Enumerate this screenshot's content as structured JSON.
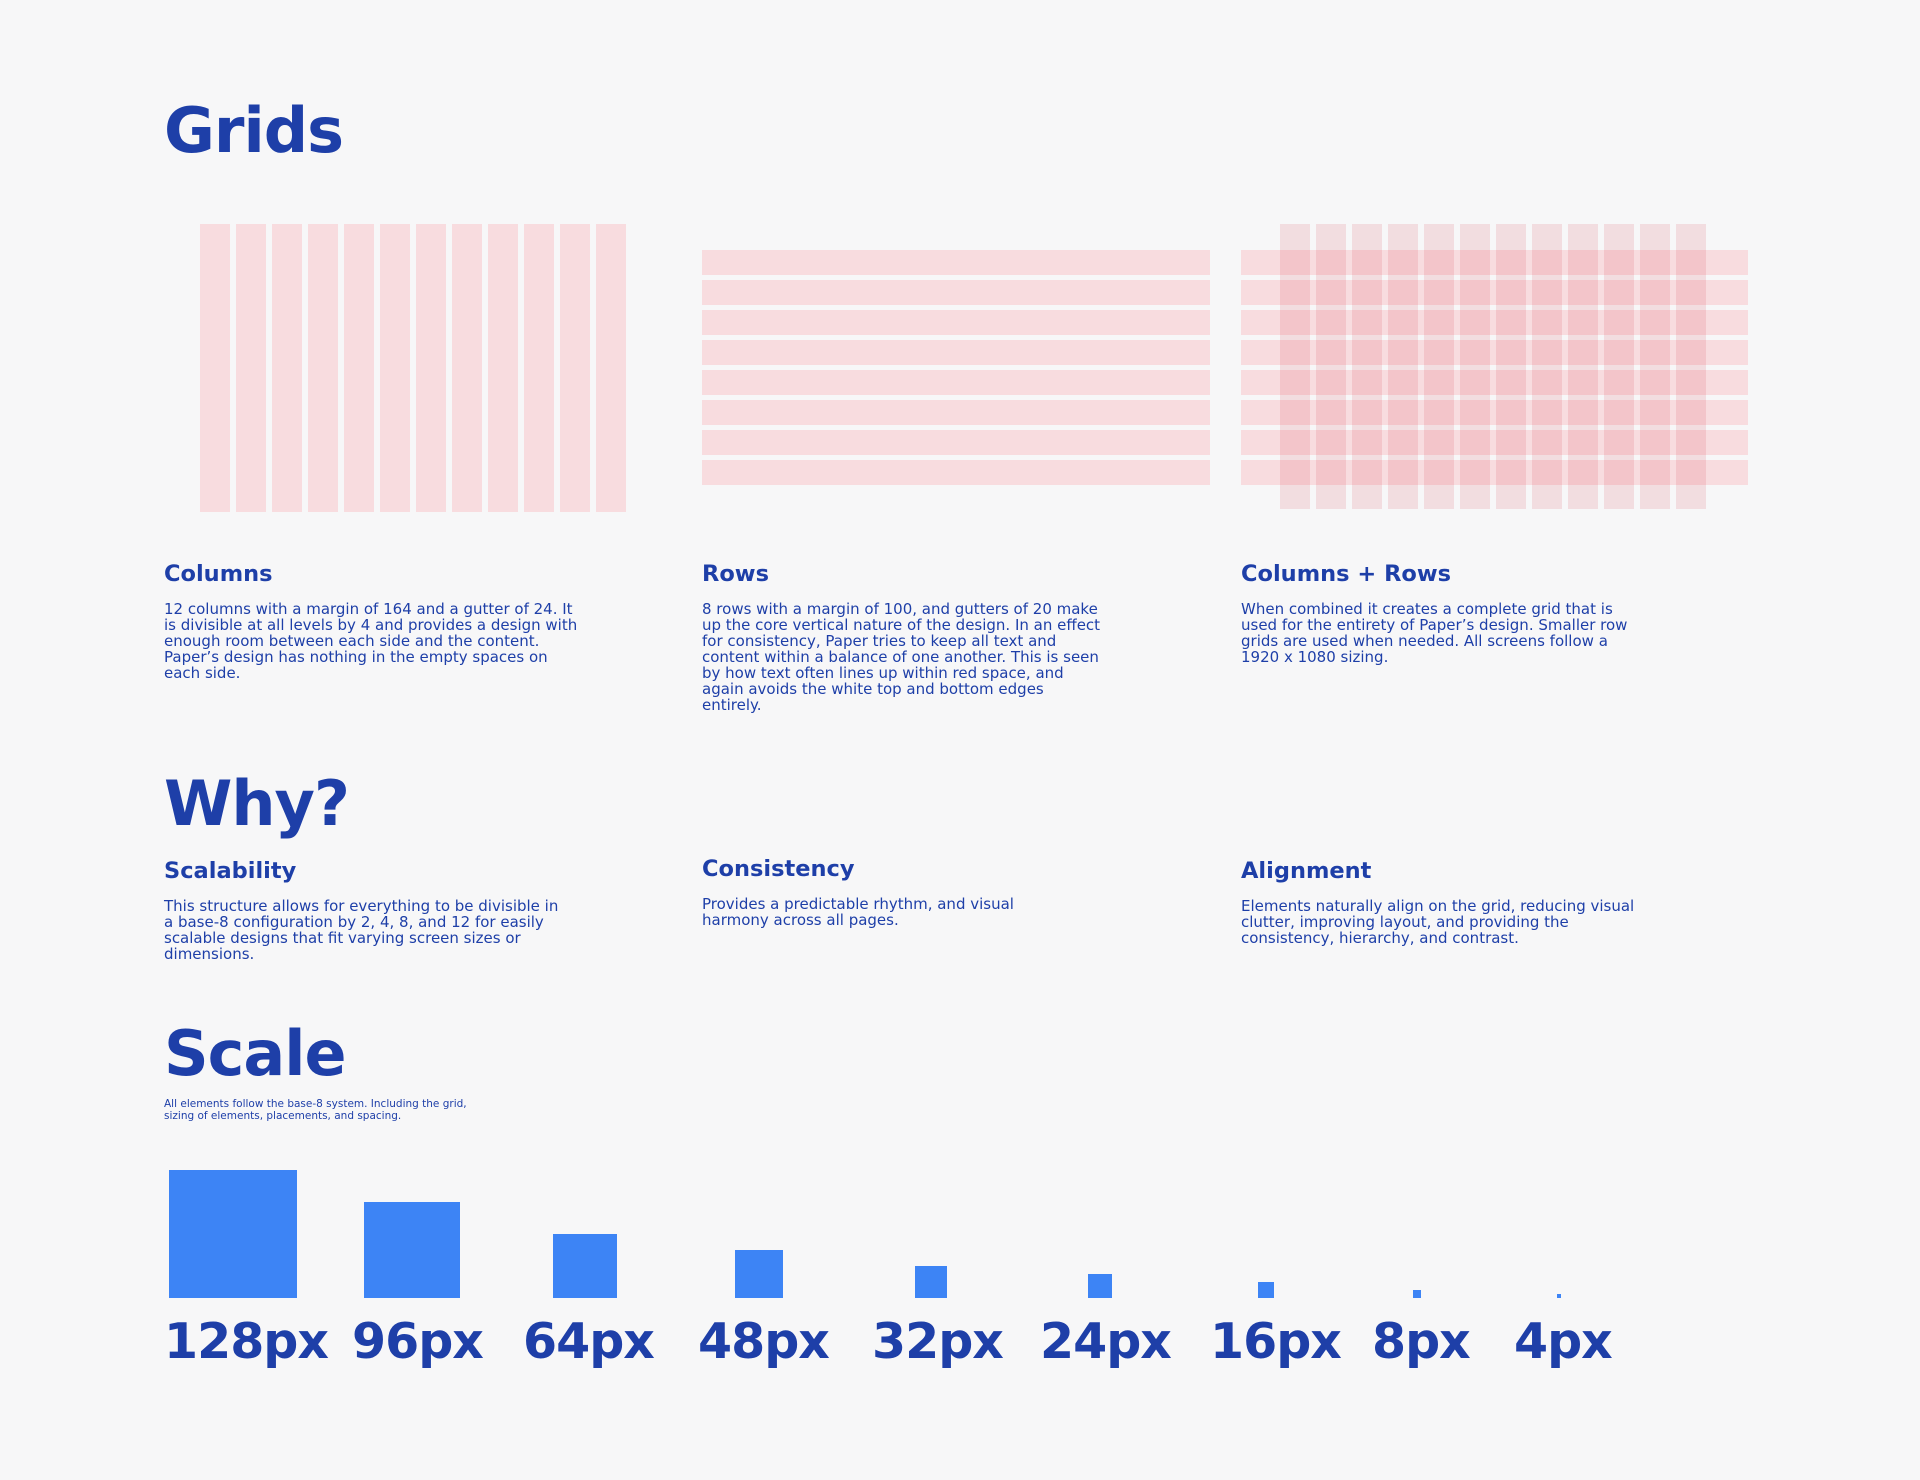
{
  "grids": {
    "title": "Grids",
    "columns": {
      "title": "Columns",
      "description": "12 columns with a margin of 164 and a gutter of 24. It is divisible at all levels by 4 and provides a design with enough room between each side and the content. Paper’s design has nothing in the empty spaces on each side."
    },
    "rows": {
      "title": "Rows",
      "description": "8 rows with a margin of 100, and gutters of 20 make up the core vertical nature of the design. In an effect for consistency, Paper tries to keep all text and content within a balance of one another. This is seen by how text often lines up within red space, and again avoids the white top and bottom edges entirely."
    },
    "combined": {
      "title": "Columns + Rows",
      "description": "When combined it creates a complete grid that is used for the entirety of Paper’s design. Smaller row grids are used when needed. All screens follow a 1920 x 1080 sizing."
    },
    "column_count": 12,
    "row_count": 8,
    "grid_color": "#f8dcdf",
    "overlap_color": "#f6c6ca"
  },
  "why": {
    "title": "Why?",
    "scalability": {
      "title": "Scalability",
      "description": "This structure allows for everything to be divisible in a base-8 configuration by 2, 4, 8, and 12 for easily scalable designs that fit varying screen sizes or dimensions."
    },
    "consistency": {
      "title": "Consistency",
      "description": "Provides a predictable rhythm, and visual harmony across all pages."
    },
    "alignment": {
      "title": "Alignment",
      "description": "Elements naturally align on the grid, reducing visual clutter, improving layout, and providing the consistency, hierarchy, and contrast."
    }
  },
  "scale": {
    "title": "Scale",
    "description": "All elements follow the base-8 system. Including the grid, sizing of elements, placements, and spacing.",
    "box_color": "#3d84f5",
    "items": [
      {
        "size": 128,
        "label": "128px"
      },
      {
        "size": 96,
        "label": "96px"
      },
      {
        "size": 64,
        "label": "64px"
      },
      {
        "size": 48,
        "label": "48px"
      },
      {
        "size": 32,
        "label": "32px"
      },
      {
        "size": 24,
        "label": "24px"
      },
      {
        "size": 16,
        "label": "16px"
      },
      {
        "size": 8,
        "label": "8px"
      },
      {
        "size": 4,
        "label": "4px"
      }
    ]
  },
  "colors": {
    "background": "#f7f7f8",
    "text": "#1e3fa8"
  }
}
